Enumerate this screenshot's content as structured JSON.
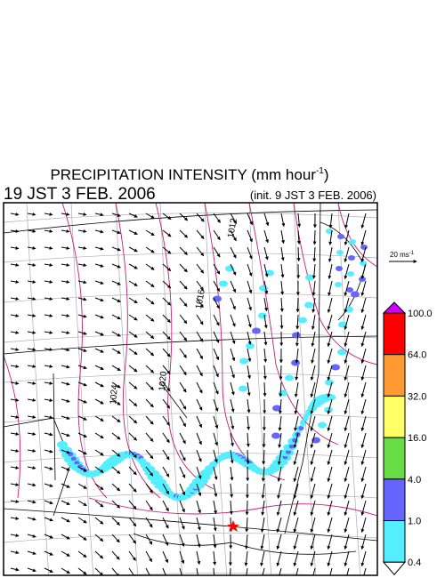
{
  "header": {
    "title": "PRECIPITATION INTENSITY (mm hour",
    "title_exponent": "-1",
    "title_close": ")",
    "valid_time": "19 JST 3 FEB. 2006",
    "init_time": "(init. 9 JST 3 FEB. 2006)"
  },
  "reference_vector": {
    "label": "20 ms",
    "exponent": "-1"
  },
  "contour_labels": [
    "1012",
    "1016",
    "1020",
    "1024"
  ],
  "colorbar": {
    "levels": [
      {
        "label": "100.0",
        "color": "#cc00ff"
      },
      {
        "label": "64.0",
        "color": "#ff0000"
      },
      {
        "label": "32.0",
        "color": "#ff9933"
      },
      {
        "label": "16.0",
        "color": "#ffff66"
      },
      {
        "label": "4.0",
        "color": "#66dd44"
      },
      {
        "label": "1.0",
        "color": "#6666ff"
      },
      {
        "label": "0.4",
        "color": "#55eeff"
      }
    ],
    "below_color": "#ffffff"
  }
}
